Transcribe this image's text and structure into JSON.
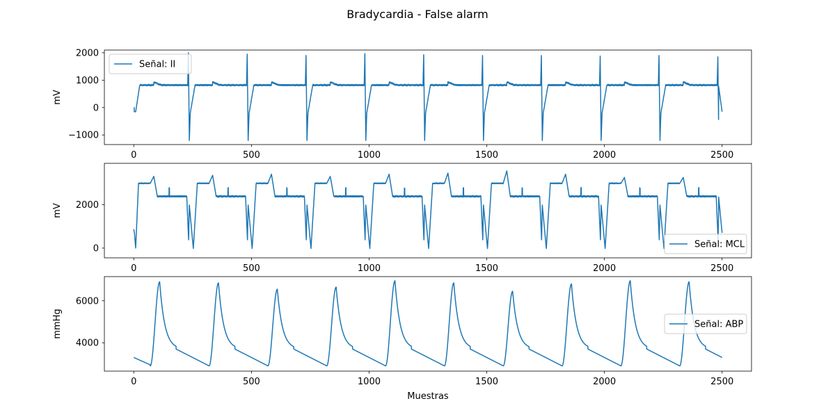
{
  "chart_data": {
    "title": "Bradycardia - False alarm",
    "xlabel": "Muestras",
    "line_color": "#1f77b4",
    "beat_period": 250,
    "beat_count": 10,
    "panels": [
      {
        "type": "line",
        "series_name": "Señal: II",
        "ylabel": "mV",
        "xlim": [
          -125,
          2625
        ],
        "ylim": [
          -1350,
          2100
        ],
        "x_ticks": [
          0,
          500,
          1000,
          1500,
          2000,
          2500
        ],
        "y_ticks": [
          -1000,
          0,
          1000,
          2000
        ],
        "y_tick_labels": [
          "−1000",
          "0",
          "1000",
          "2000"
        ],
        "legend_position": "upper left",
        "beat_peaks": [
          2000,
          1950,
          1900,
          1970,
          1930,
          1900,
          1900,
          1880,
          1900,
          1850
        ]
      },
      {
        "type": "line",
        "series_name": "Señal: MCL",
        "ylabel": "mV",
        "xlim": [
          -125,
          2625
        ],
        "ylim": [
          -450,
          3900
        ],
        "x_ticks": [
          0,
          500,
          1000,
          1500,
          2000,
          2500
        ],
        "y_ticks": [
          0,
          2000
        ],
        "y_tick_labels": [
          "0",
          "2000"
        ],
        "legend_position": "lower right",
        "beat_peaks": [
          3300,
          3350,
          3400,
          3300,
          3400,
          3450,
          3550,
          3400,
          3250,
          3250
        ]
      },
      {
        "type": "line",
        "series_name": "Señal: ABP",
        "ylabel": "mmHg",
        "xlim": [
          -125,
          2625
        ],
        "ylim": [
          2650,
          7150
        ],
        "x_ticks": [
          0,
          500,
          1000,
          1500,
          2000,
          2500
        ],
        "y_ticks": [
          4000,
          6000
        ],
        "y_tick_labels": [
          "4000",
          "6000"
        ],
        "legend_position": "center right",
        "beat_peaks": [
          6900,
          6850,
          6550,
          6650,
          6950,
          6850,
          6450,
          6800,
          6950,
          6900
        ]
      }
    ]
  }
}
